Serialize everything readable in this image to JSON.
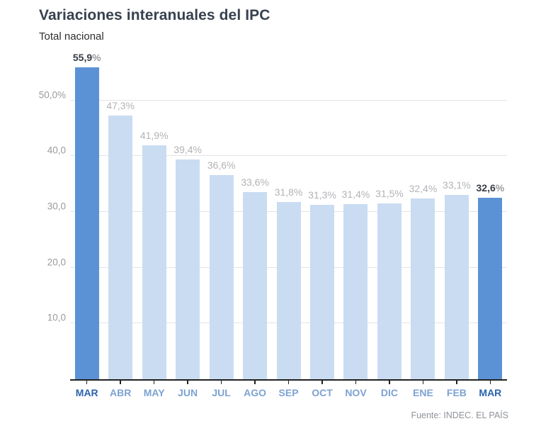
{
  "header": {
    "title": "Variaciones interanuales del IPC",
    "subtitle": "Total nacional"
  },
  "chart_data": {
    "type": "bar",
    "title": "Variaciones interanuales del IPC",
    "subtitle": "Total nacional",
    "categories": [
      "MAR",
      "ABR",
      "MAY",
      "JUN",
      "JUL",
      "AGO",
      "SEP",
      "OCT",
      "NOV",
      "DIC",
      "ENE",
      "FEB",
      "MAR"
    ],
    "values": [
      55.9,
      47.3,
      41.9,
      39.4,
      36.6,
      33.6,
      31.8,
      31.3,
      31.4,
      31.5,
      32.4,
      33.1,
      32.6
    ],
    "value_labels": [
      "55,9%",
      "47,3%",
      "41,9%",
      "39,4%",
      "36,6%",
      "33,6%",
      "31,8%",
      "31,3%",
      "31,4%",
      "31,5%",
      "32,4%",
      "33,1%",
      "32,6%"
    ],
    "highlighted_indices": [
      0,
      12
    ],
    "y_ticks": [
      {
        "value": 50,
        "label": "50,0%"
      },
      {
        "value": 40,
        "label": "40,0"
      },
      {
        "value": 30,
        "label": "30,0"
      },
      {
        "value": 20,
        "label": "20,0"
      },
      {
        "value": 10,
        "label": "10,0"
      }
    ],
    "ylim": [
      0,
      57.2
    ],
    "xlabel": "",
    "ylabel": "",
    "grid": true,
    "legend": false,
    "colors": {
      "bar": "#c9dcf2",
      "bar_highlight": "#5b92d5",
      "gridline": "#e4e4e4",
      "axis": "#222222",
      "y_tick_label": "#9b9b9b",
      "value_label": "#b1b3b6",
      "value_label_highlight": "#363c44",
      "x_label": "#7da2d2",
      "x_label_highlight": "#2b64ad"
    }
  },
  "footer": {
    "source": "Fuente: INDEC. EL PAÍS"
  }
}
